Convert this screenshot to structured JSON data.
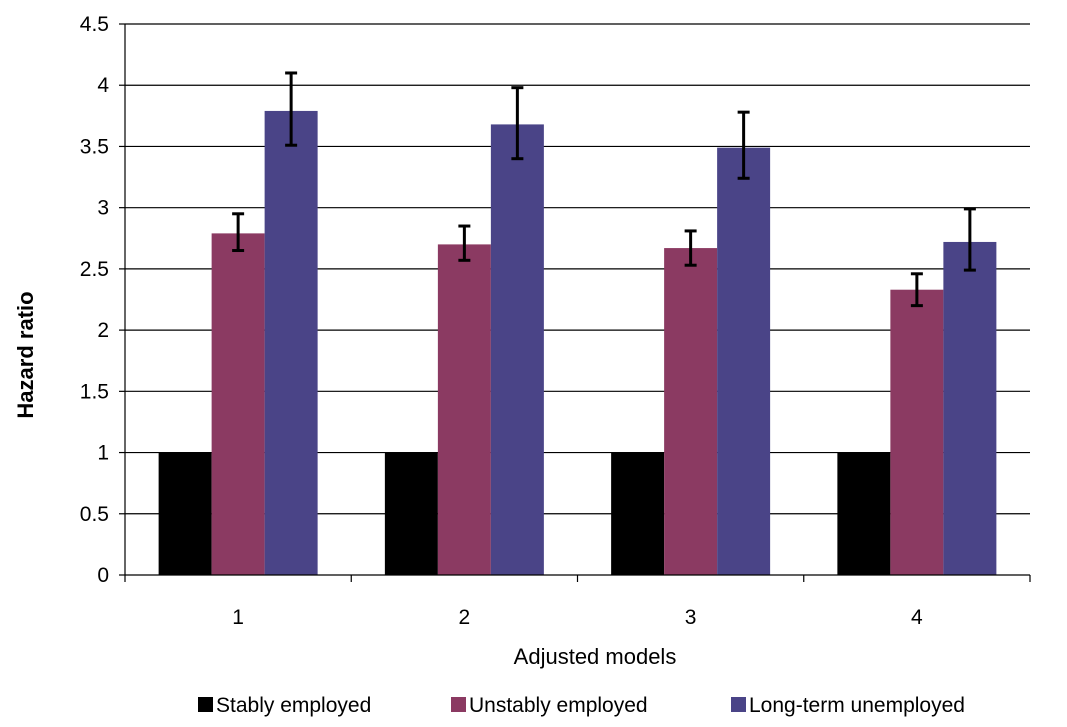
{
  "chart_data": {
    "type": "bar",
    "title": "",
    "xlabel": "Adjusted models",
    "ylabel": "Hazard ratio",
    "ylim": [
      0,
      4.5
    ],
    "yticks": [
      0,
      0.5,
      1,
      1.5,
      2,
      2.5,
      3,
      3.5,
      4,
      4.5
    ],
    "ytick_labels": [
      "0",
      "0.5",
      "1",
      "1.5",
      "2",
      "2.5",
      "3",
      "3.5",
      "4",
      "4.5"
    ],
    "grid": "horizontal",
    "legend_position": "bottom",
    "categories": [
      "1",
      "2",
      "3",
      "4"
    ],
    "series": [
      {
        "name": "Stably employed",
        "color": "#000000",
        "values": [
          1,
          1,
          1,
          1
        ],
        "error_low": [
          null,
          null,
          null,
          null
        ],
        "error_high": [
          null,
          null,
          null,
          null
        ]
      },
      {
        "name": "Unstably employed",
        "color": "#8B3A62",
        "values": [
          2.79,
          2.7,
          2.67,
          2.33
        ],
        "error_low": [
          2.65,
          2.57,
          2.53,
          2.2
        ],
        "error_high": [
          2.95,
          2.85,
          2.81,
          2.46
        ]
      },
      {
        "name": "Long-term unemployed",
        "color": "#4A4487",
        "values": [
          3.79,
          3.68,
          3.49,
          2.72
        ],
        "error_low": [
          3.51,
          3.4,
          3.24,
          2.49
        ],
        "error_high": [
          4.1,
          3.98,
          3.78,
          2.99
        ]
      }
    ]
  }
}
